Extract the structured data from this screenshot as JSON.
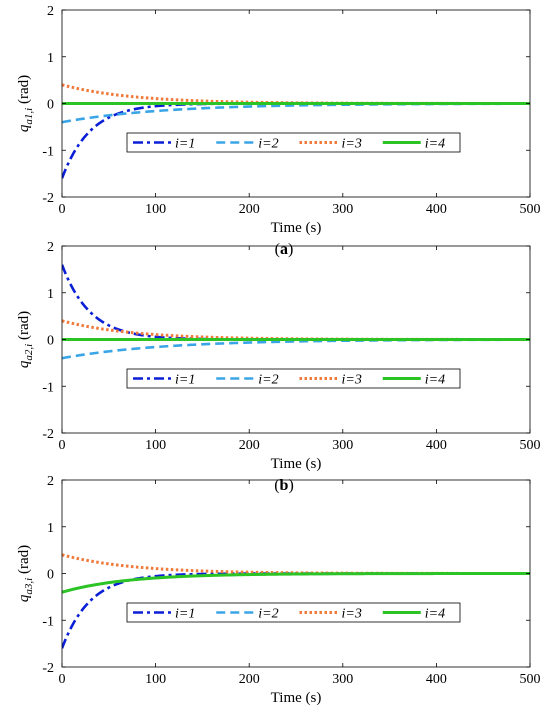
{
  "chart_data": [
    {
      "type": "line",
      "panel_label": "(a)",
      "panel_letter": "a",
      "ylabel": "q_{a1,i} (rad)",
      "ylabel_parts": {
        "symbol": "q",
        "subscript": "a1,",
        "index": "i",
        "unit": "(rad)"
      },
      "xlabel": "Time (s)",
      "xlim": [
        0,
        500
      ],
      "ylim": [
        -2,
        2
      ],
      "xticks": [
        0,
        100,
        200,
        300,
        400,
        500
      ],
      "yticks": [
        -2,
        -1,
        0,
        1,
        2
      ],
      "grid": false,
      "legend_position": "bottom-center",
      "series": [
        {
          "name": "i=1",
          "color": "#0a1fd6",
          "dash": "dashdot",
          "y0": -1.6,
          "tau": 30
        },
        {
          "name": "i=2",
          "color": "#3aa5e6",
          "dash": "dashed",
          "y0": -0.4,
          "tau": 110
        },
        {
          "name": "i=3",
          "color": "#f07a3a",
          "dash": "dotted",
          "y0": 0.4,
          "tau": 75
        },
        {
          "name": "i=4",
          "color": "#2bc424",
          "dash": "solid",
          "y0": 0.0,
          "tau": 60
        }
      ]
    },
    {
      "type": "line",
      "panel_label": "(b)",
      "panel_letter": "b",
      "ylabel": "q_{a2,i} (rad)",
      "ylabel_parts": {
        "symbol": "q",
        "subscript": "a2,",
        "index": "i",
        "unit": "(rad)"
      },
      "xlabel": "Time (s)",
      "xlim": [
        0,
        500
      ],
      "ylim": [
        -2,
        2
      ],
      "xticks": [
        0,
        100,
        200,
        300,
        400,
        500
      ],
      "yticks": [
        -2,
        -1,
        0,
        1,
        2
      ],
      "grid": false,
      "legend_position": "bottom-center",
      "series": [
        {
          "name": "i=1",
          "color": "#0a1fd6",
          "dash": "dashdot",
          "y0": 1.6,
          "tau": 30
        },
        {
          "name": "i=2",
          "color": "#3aa5e6",
          "dash": "dashed",
          "y0": -0.4,
          "tau": 110
        },
        {
          "name": "i=3",
          "color": "#f07a3a",
          "dash": "dotted",
          "y0": 0.4,
          "tau": 75
        },
        {
          "name": "i=4",
          "color": "#2bc424",
          "dash": "solid",
          "y0": 0.0,
          "tau": 60
        }
      ]
    },
    {
      "type": "line",
      "panel_label": "(c)",
      "panel_letter": "c",
      "ylabel": "q_{a3,i} (rad)",
      "ylabel_parts": {
        "symbol": "q",
        "subscript": "a3,",
        "index": "i",
        "unit": "(rad)"
      },
      "xlabel": "Time (s)",
      "xlim": [
        0,
        500
      ],
      "ylim": [
        -2,
        2
      ],
      "xticks": [
        0,
        100,
        200,
        300,
        400,
        500
      ],
      "yticks": [
        -2,
        -1,
        0,
        1,
        2
      ],
      "grid": false,
      "legend_position": "bottom-center",
      "series": [
        {
          "name": "i=1",
          "color": "#0a1fd6",
          "dash": "dashdot",
          "y0": -1.6,
          "tau": 30
        },
        {
          "name": "i=2",
          "color": "#3aa5e6",
          "dash": "dashed",
          "y0": -0.4,
          "tau": 70
        },
        {
          "name": "i=3",
          "color": "#f07a3a",
          "dash": "dotted",
          "y0": 0.4,
          "tau": 75
        },
        {
          "name": "i=4",
          "color": "#2bc424",
          "dash": "solid",
          "y0": -0.4,
          "tau": 70
        }
      ]
    }
  ]
}
